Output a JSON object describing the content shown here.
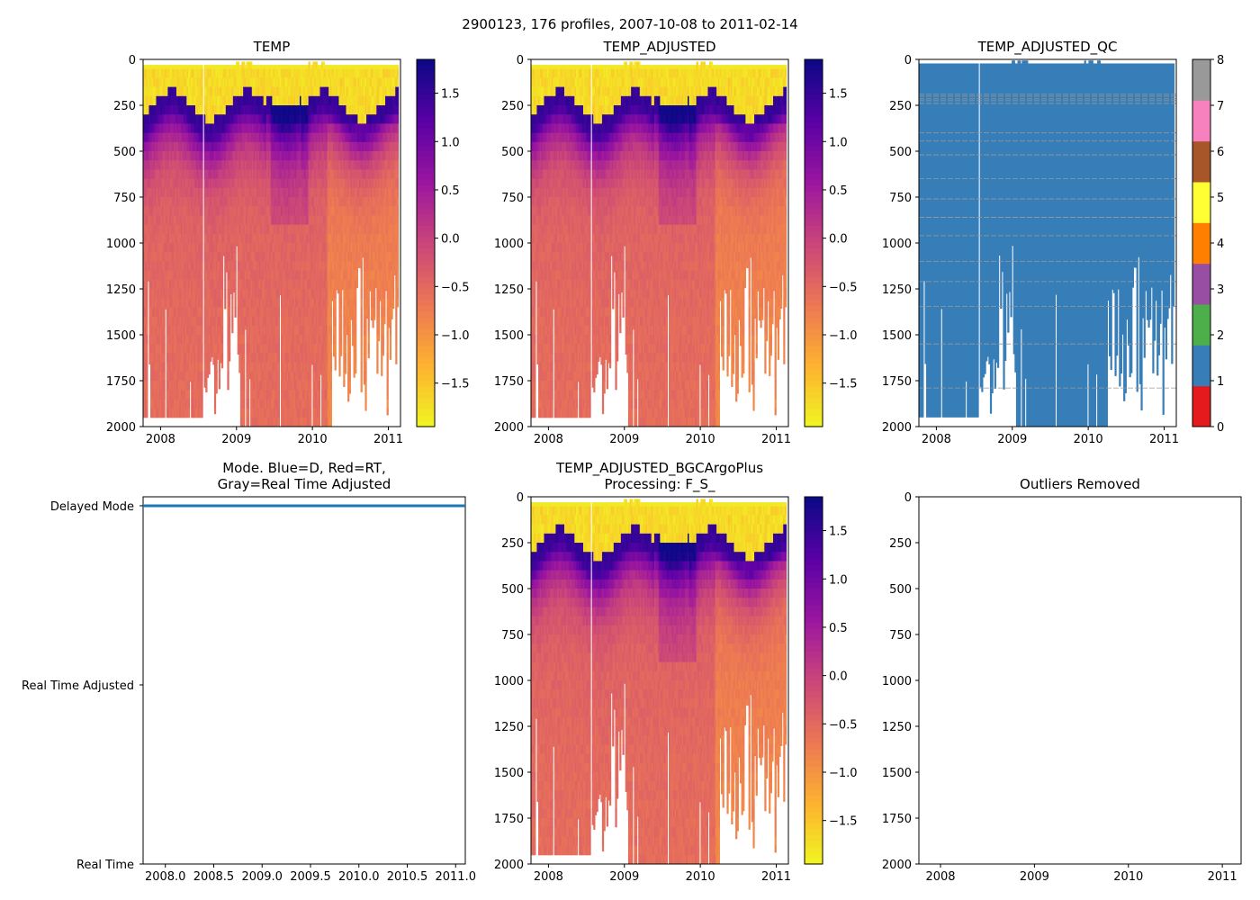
{
  "figure": {
    "suptitle": "2900123, 176 profiles, 2007-10-08 to 2011-02-14",
    "palette": {
      "plasma": [
        "#0d0887",
        "#5c01a6",
        "#9c179e",
        "#cc4778",
        "#ed7953",
        "#fdb42f",
        "#f0f921"
      ],
      "qc": [
        "#e41a1c",
        "#377eb8",
        "#4daf4a",
        "#984ea3",
        "#ff7f00",
        "#ffff33",
        "#a65628",
        "#f781bf",
        "#999999"
      ],
      "mode_line": "#1f77b4"
    }
  },
  "chart_data": [
    {
      "id": "temp",
      "type": "heatmap",
      "title": "TEMP",
      "xlim": [
        2007.77,
        2011.16
      ],
      "xticks": [
        2008,
        2009,
        2010,
        2011
      ],
      "xticklabels": [
        "2008",
        "2009",
        "2010",
        "2011"
      ],
      "ylim": [
        2000,
        0
      ],
      "yticks": [
        0,
        250,
        500,
        750,
        1000,
        1250,
        1500,
        1750,
        2000
      ],
      "yticklabels": [
        "0",
        "250",
        "500",
        "750",
        "1000",
        "1250",
        "1500",
        "1750",
        "2000"
      ],
      "colormap": "plasma_r",
      "clim": [
        -1.95,
        1.85
      ],
      "colorbar_ticks": [
        1.5,
        1.0,
        0.5,
        0.0,
        -0.5,
        -1.0,
        -1.5
      ],
      "colorbar_ticklabels": [
        "1.5",
        "1.0",
        "0.5",
        "0.0",
        "−0.5",
        "−1.0",
        "−1.5"
      ]
    },
    {
      "id": "temp_adj",
      "type": "heatmap",
      "title": "TEMP_ADJUSTED",
      "xlim": [
        2007.77,
        2011.16
      ],
      "xticks": [
        2008,
        2009,
        2010,
        2011
      ],
      "xticklabels": [
        "2008",
        "2009",
        "2010",
        "2011"
      ],
      "ylim": [
        2000,
        0
      ],
      "yticks": [
        0,
        250,
        500,
        750,
        1000,
        1250,
        1500,
        1750,
        2000
      ],
      "yticklabels": [
        "0",
        "250",
        "500",
        "750",
        "1000",
        "1250",
        "1500",
        "1750",
        "2000"
      ],
      "colormap": "plasma_r",
      "clim": [
        -1.95,
        1.85
      ],
      "colorbar_ticks": [
        1.5,
        1.0,
        0.5,
        0.0,
        -0.5,
        -1.0,
        -1.5
      ],
      "colorbar_ticklabels": [
        "1.5",
        "1.0",
        "0.5",
        "0.0",
        "−0.5",
        "−1.0",
        "−1.5"
      ]
    },
    {
      "id": "qc",
      "type": "heatmap",
      "title": "TEMP_ADJUSTED_QC",
      "xlim": [
        2007.77,
        2011.16
      ],
      "xticks": [
        2008,
        2009,
        2010,
        2011
      ],
      "xticklabels": [
        "2008",
        "2009",
        "2010",
        "2011"
      ],
      "ylim": [
        2000,
        0
      ],
      "yticks": [
        0,
        250,
        500,
        750,
        1000,
        1250,
        1500,
        1750,
        2000
      ],
      "yticklabels": [
        "0",
        "250",
        "500",
        "750",
        "1000",
        "1250",
        "1500",
        "1750",
        "2000"
      ],
      "colormap": "qc_categorical",
      "clim": [
        0,
        8
      ],
      "dominant_flag": 1,
      "colorbar_ticks": [
        0,
        1,
        2,
        3,
        4,
        5,
        6,
        7,
        8
      ],
      "colorbar_ticklabels": [
        "0",
        "1",
        "2",
        "3",
        "4",
        "5",
        "6",
        "7",
        "8"
      ]
    },
    {
      "id": "mode",
      "type": "line",
      "title": "Mode. Blue=D, Red=RT,",
      "title_line2": "Gray=Real Time Adjusted",
      "xlim": [
        2007.77,
        2011.1
      ],
      "xticks": [
        2008.0,
        2008.5,
        2009.0,
        2009.5,
        2010.0,
        2010.5,
        2011.0
      ],
      "xticklabels": [
        "2008.0",
        "2008.5",
        "2009.0",
        "2009.5",
        "2010.0",
        "2010.5",
        "2011.0"
      ],
      "ylim": [
        0,
        2.05
      ],
      "yticks": [
        2,
        1,
        0
      ],
      "yticklabels": [
        "Delayed Mode",
        "Real Time Adjusted",
        "Real Time"
      ],
      "series": [
        {
          "name": "Delayed Mode",
          "x": [
            2007.77,
            2011.1
          ],
          "values": [
            2,
            2
          ]
        }
      ]
    },
    {
      "id": "bgc",
      "type": "heatmap",
      "title": "TEMP_ADJUSTED_BGCArgoPlus",
      "title_line2": "Processing: F_S_",
      "xlim": [
        2007.77,
        2011.16
      ],
      "xticks": [
        2008,
        2009,
        2010,
        2011
      ],
      "xticklabels": [
        "2008",
        "2009",
        "2010",
        "2011"
      ],
      "ylim": [
        2000,
        0
      ],
      "yticks": [
        0,
        250,
        500,
        750,
        1000,
        1250,
        1500,
        1750,
        2000
      ],
      "yticklabels": [
        "0",
        "250",
        "500",
        "750",
        "1000",
        "1250",
        "1500",
        "1750",
        "2000"
      ],
      "colormap": "plasma_r",
      "clim": [
        -1.95,
        1.85
      ],
      "colorbar_ticks": [
        1.5,
        1.0,
        0.5,
        0.0,
        -0.5,
        -1.0,
        -1.5
      ],
      "colorbar_ticklabels": [
        "1.5",
        "1.0",
        "0.5",
        "0.0",
        "−0.5",
        "−1.0",
        "−1.5"
      ]
    },
    {
      "id": "outliers",
      "type": "scatter",
      "title": "Outliers Removed",
      "xlim": [
        2007.77,
        2011.2
      ],
      "xticks": [
        2008,
        2009,
        2010,
        2011
      ],
      "xticklabels": [
        "2008",
        "2009",
        "2010",
        "2011"
      ],
      "ylim": [
        2000,
        0
      ],
      "yticks": [
        0,
        250,
        500,
        750,
        1000,
        1250,
        1500,
        1750,
        2000
      ],
      "yticklabels": [
        "0",
        "250",
        "500",
        "750",
        "1000",
        "1250",
        "1500",
        "1750",
        "2000"
      ],
      "series": []
    }
  ]
}
